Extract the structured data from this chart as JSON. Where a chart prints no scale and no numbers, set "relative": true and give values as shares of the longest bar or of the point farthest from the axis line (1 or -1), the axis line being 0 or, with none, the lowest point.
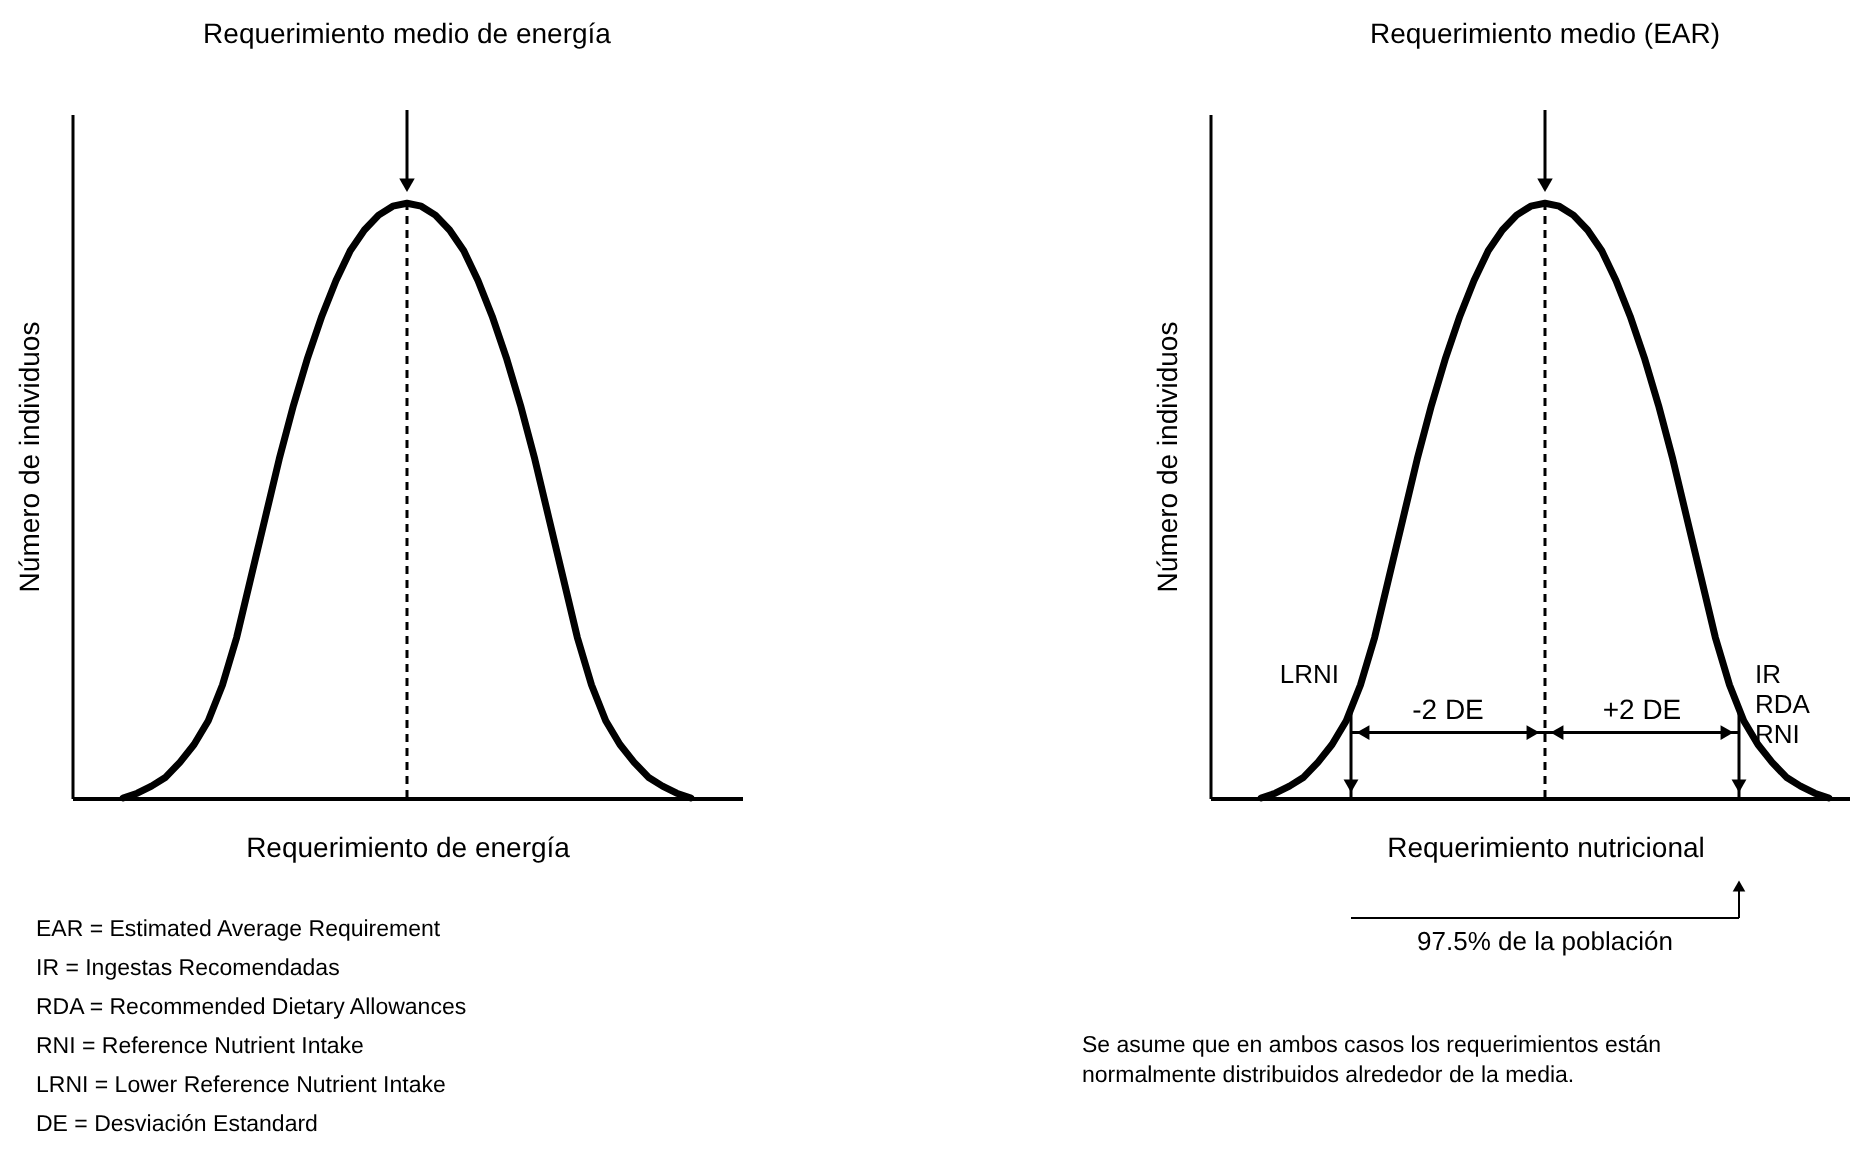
{
  "chart_data": [
    {
      "type": "line",
      "title": "Requerimiento medio de energía",
      "xlabel": "Requerimiento de energía",
      "ylabel": "Número de individuos",
      "relative": true,
      "categories": [
        null,
        null,
        null,
        null,
        null,
        null,
        null,
        null,
        null,
        null,
        null,
        null,
        null,
        null,
        null,
        null,
        null,
        null,
        null,
        null,
        null,
        null,
        null,
        null,
        null,
        null,
        null,
        null,
        null,
        null,
        null,
        null,
        null,
        null,
        null,
        null,
        null,
        null,
        null,
        null,
        null
      ],
      "series": [
        {
          "color": "#000000",
          "values": [
            0,
            0.008,
            0.02,
            0.035,
            0.06,
            0.09,
            0.13,
            0.19,
            0.27,
            0.37,
            0.47,
            0.57,
            0.66,
            0.74,
            0.81,
            0.87,
            0.92,
            0.955,
            0.98,
            0.995,
            1,
            0.995,
            0.98,
            0.955,
            0.92,
            0.87,
            0.81,
            0.74,
            0.66,
            0.57,
            0.47,
            0.37,
            0.27,
            0.19,
            0.13,
            0.09,
            0.06,
            0.035,
            0.02,
            0.008,
            0
          ]
        }
      ],
      "annotations": [
        "EAR = Estimated Average Requirement",
        "IR = Ingestas Recomendadas",
        "RDA = Recommended Dietary Allowances",
        "RNI = Reference Nutrient Intake",
        "LRNI = Lower Reference Nutrient Intake",
        "DE = Desviación Estandard"
      ]
    },
    {
      "type": "line",
      "title": "Requerimiento medio (EAR)",
      "xlabel": "Requerimiento nutricional",
      "ylabel": "Número de individuos",
      "relative": true,
      "categories": [
        null,
        null,
        null,
        null,
        null,
        null,
        null,
        null,
        null,
        null,
        null,
        null,
        null,
        null,
        null,
        null,
        null,
        null,
        null,
        null,
        null,
        null,
        null,
        null,
        null,
        null,
        null,
        null,
        null,
        null,
        null,
        null,
        null,
        null,
        null,
        null,
        null,
        null,
        null,
        null,
        null
      ],
      "series": [
        {
          "color": "#000000",
          "values": [
            0,
            0.008,
            0.02,
            0.035,
            0.06,
            0.09,
            0.13,
            0.19,
            0.27,
            0.37,
            0.47,
            0.57,
            0.66,
            0.74,
            0.81,
            0.87,
            0.92,
            0.955,
            0.98,
            0.995,
            1,
            0.995,
            0.98,
            0.955,
            0.92,
            0.87,
            0.81,
            0.74,
            0.66,
            0.57,
            0.47,
            0.37,
            0.27,
            0.19,
            0.13,
            0.09,
            0.06,
            0.035,
            0.02,
            0.008,
            0
          ]
        }
      ],
      "annotations": [
        "LRNI",
        "IR\nRDA\nRNI",
        "-2 DE",
        "+2 DE",
        "97.5% de la población",
        "Se asume que en ambos casos los requerimientos están normalmente distribuidos alrededor de la media."
      ]
    }
  ]
}
